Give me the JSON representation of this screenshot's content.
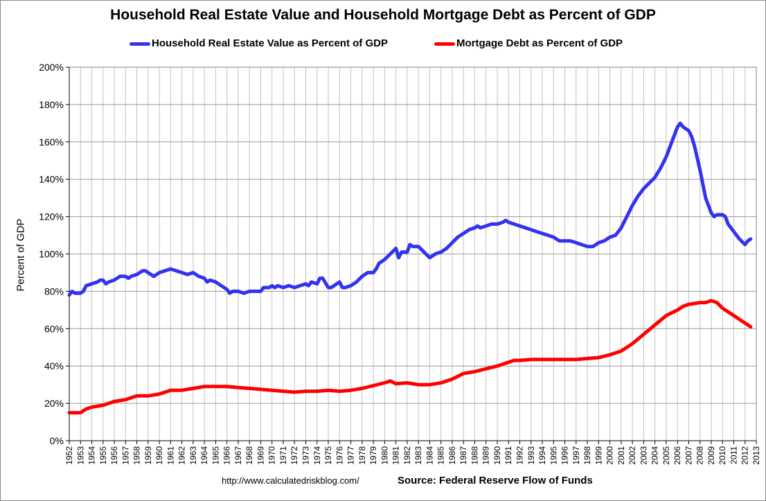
{
  "chart_data": {
    "type": "line",
    "title": "Household Real Estate Value and Household Mortgage Debt as Percent of GDP",
    "xlabel": "",
    "ylabel": "Percent of GDP",
    "ylim": [
      0,
      200
    ],
    "xlim": [
      1952,
      2013
    ],
    "y_ticks": [
      "0%",
      "20%",
      "40%",
      "60%",
      "80%",
      "100%",
      "120%",
      "140%",
      "160%",
      "180%",
      "200%"
    ],
    "x_ticks": [
      "1952",
      "1953",
      "1954",
      "1955",
      "1956",
      "1957",
      "1958",
      "1959",
      "1960",
      "1961",
      "1962",
      "1963",
      "1964",
      "1965",
      "1966",
      "1967",
      "1968",
      "1969",
      "1970",
      "1971",
      "1972",
      "1973",
      "1974",
      "1975",
      "1976",
      "1977",
      "1978",
      "1979",
      "1980",
      "1981",
      "1982",
      "1983",
      "1984",
      "1985",
      "1986",
      "1987",
      "1988",
      "1989",
      "1990",
      "1991",
      "1992",
      "1993",
      "1994",
      "1995",
      "1996",
      "1997",
      "1998",
      "1999",
      "2000",
      "2001",
      "2002",
      "2003",
      "2004",
      "2005",
      "2006",
      "2007",
      "2008",
      "2009",
      "2010",
      "2011",
      "2012",
      "2013"
    ],
    "grid": true,
    "legend_position": "top",
    "series": [
      {
        "name": "Household Real Estate Value as Percent of GDP",
        "color": "#3333ee",
        "points": [
          [
            1952.0,
            78
          ],
          [
            1952.25,
            80
          ],
          [
            1952.5,
            79
          ],
          [
            1953.0,
            79
          ],
          [
            1953.25,
            80
          ],
          [
            1953.5,
            83
          ],
          [
            1954.0,
            84
          ],
          [
            1954.5,
            85
          ],
          [
            1954.75,
            86
          ],
          [
            1955.0,
            86
          ],
          [
            1955.25,
            84
          ],
          [
            1955.5,
            85
          ],
          [
            1956.0,
            86
          ],
          [
            1956.5,
            88
          ],
          [
            1957.0,
            88
          ],
          [
            1957.25,
            87
          ],
          [
            1957.5,
            88
          ],
          [
            1958.0,
            89
          ],
          [
            1958.5,
            91
          ],
          [
            1958.75,
            91
          ],
          [
            1959.0,
            90
          ],
          [
            1959.25,
            89
          ],
          [
            1959.5,
            88
          ],
          [
            1960.0,
            90
          ],
          [
            1960.5,
            91
          ],
          [
            1961.0,
            92
          ],
          [
            1961.5,
            91
          ],
          [
            1962.0,
            90
          ],
          [
            1962.5,
            89
          ],
          [
            1963.0,
            90
          ],
          [
            1963.5,
            88
          ],
          [
            1964.0,
            87
          ],
          [
            1964.25,
            85
          ],
          [
            1964.5,
            86
          ],
          [
            1965.0,
            85
          ],
          [
            1965.5,
            83
          ],
          [
            1966.0,
            81
          ],
          [
            1966.25,
            79
          ],
          [
            1966.5,
            80
          ],
          [
            1967.0,
            80
          ],
          [
            1967.5,
            79
          ],
          [
            1968.0,
            80
          ],
          [
            1968.5,
            80
          ],
          [
            1969.0,
            80
          ],
          [
            1969.25,
            82
          ],
          [
            1969.75,
            82
          ],
          [
            1970.0,
            83
          ],
          [
            1970.25,
            82
          ],
          [
            1970.5,
            83
          ],
          [
            1971.0,
            82
          ],
          [
            1971.5,
            83
          ],
          [
            1972.0,
            82
          ],
          [
            1972.5,
            83
          ],
          [
            1973.0,
            84
          ],
          [
            1973.25,
            83
          ],
          [
            1973.5,
            85
          ],
          [
            1974.0,
            84
          ],
          [
            1974.25,
            87
          ],
          [
            1974.5,
            87
          ],
          [
            1975.0,
            82
          ],
          [
            1975.25,
            82
          ],
          [
            1975.5,
            83
          ],
          [
            1976.0,
            85
          ],
          [
            1976.25,
            82
          ],
          [
            1976.5,
            82
          ],
          [
            1977.0,
            83
          ],
          [
            1977.5,
            85
          ],
          [
            1978.0,
            88
          ],
          [
            1978.5,
            90
          ],
          [
            1979.0,
            90
          ],
          [
            1979.25,
            92
          ],
          [
            1979.5,
            95
          ],
          [
            1980.0,
            97
          ],
          [
            1980.5,
            100
          ],
          [
            1981.0,
            103
          ],
          [
            1981.25,
            98
          ],
          [
            1981.5,
            101
          ],
          [
            1982.0,
            101
          ],
          [
            1982.25,
            105
          ],
          [
            1982.5,
            104
          ],
          [
            1983.0,
            104
          ],
          [
            1983.5,
            101
          ],
          [
            1984.0,
            98
          ],
          [
            1984.5,
            100
          ],
          [
            1985.0,
            101
          ],
          [
            1985.5,
            103
          ],
          [
            1986.0,
            106
          ],
          [
            1986.5,
            109
          ],
          [
            1987.0,
            111
          ],
          [
            1987.5,
            113
          ],
          [
            1988.0,
            114
          ],
          [
            1988.25,
            115
          ],
          [
            1988.5,
            114
          ],
          [
            1989.0,
            115
          ],
          [
            1989.5,
            116
          ],
          [
            1990.0,
            116
          ],
          [
            1990.5,
            117
          ],
          [
            1990.75,
            118
          ],
          [
            1991.0,
            117
          ],
          [
            1991.5,
            116
          ],
          [
            1992.0,
            115
          ],
          [
            1992.5,
            114
          ],
          [
            1993.0,
            113
          ],
          [
            1993.5,
            112
          ],
          [
            1994.0,
            111
          ],
          [
            1994.5,
            110
          ],
          [
            1995.0,
            109
          ],
          [
            1995.5,
            107
          ],
          [
            1996.0,
            107
          ],
          [
            1996.5,
            107
          ],
          [
            1997.0,
            106
          ],
          [
            1997.5,
            105
          ],
          [
            1998.0,
            104
          ],
          [
            1998.5,
            104
          ],
          [
            1999.0,
            106
          ],
          [
            1999.5,
            107
          ],
          [
            2000.0,
            109
          ],
          [
            2000.5,
            110
          ],
          [
            2001.0,
            114
          ],
          [
            2001.5,
            120
          ],
          [
            2002.0,
            126
          ],
          [
            2002.5,
            131
          ],
          [
            2003.0,
            135
          ],
          [
            2003.5,
            138
          ],
          [
            2004.0,
            141
          ],
          [
            2004.5,
            146
          ],
          [
            2005.0,
            152
          ],
          [
            2005.5,
            160
          ],
          [
            2006.0,
            168
          ],
          [
            2006.25,
            170
          ],
          [
            2006.5,
            168
          ],
          [
            2007.0,
            166
          ],
          [
            2007.25,
            163
          ],
          [
            2007.5,
            158
          ],
          [
            2008.0,
            145
          ],
          [
            2008.5,
            130
          ],
          [
            2009.0,
            122
          ],
          [
            2009.25,
            120
          ],
          [
            2009.5,
            121
          ],
          [
            2010.0,
            121
          ],
          [
            2010.25,
            120
          ],
          [
            2010.5,
            116
          ],
          [
            2011.0,
            112
          ],
          [
            2011.5,
            108
          ],
          [
            2012.0,
            105
          ],
          [
            2012.25,
            107
          ],
          [
            2012.5,
            108
          ]
        ]
      },
      {
        "name": "Mortgage Debt as Percent of GDP",
        "color": "#ff0000",
        "points": [
          [
            1952.0,
            15
          ],
          [
            1953.0,
            15
          ],
          [
            1953.5,
            17
          ],
          [
            1954.0,
            18
          ],
          [
            1955.0,
            19
          ],
          [
            1956.0,
            21
          ],
          [
            1957.0,
            22
          ],
          [
            1958.0,
            24
          ],
          [
            1959.0,
            24
          ],
          [
            1960.0,
            25
          ],
          [
            1961.0,
            27
          ],
          [
            1962.0,
            27
          ],
          [
            1963.0,
            28
          ],
          [
            1964.0,
            29
          ],
          [
            1965.0,
            29
          ],
          [
            1966.0,
            29
          ],
          [
            1967.0,
            28.5
          ],
          [
            1968.0,
            28
          ],
          [
            1969.0,
            27.5
          ],
          [
            1970.0,
            27
          ],
          [
            1971.0,
            26.5
          ],
          [
            1972.0,
            26
          ],
          [
            1973.0,
            26.5
          ],
          [
            1974.0,
            26.5
          ],
          [
            1975.0,
            27
          ],
          [
            1976.0,
            26.5
          ],
          [
            1977.0,
            27
          ],
          [
            1978.0,
            28
          ],
          [
            1979.0,
            29.5
          ],
          [
            1980.0,
            31
          ],
          [
            1980.5,
            32
          ],
          [
            1981.0,
            30.5
          ],
          [
            1982.0,
            31
          ],
          [
            1983.0,
            30
          ],
          [
            1984.0,
            30
          ],
          [
            1985.0,
            31
          ],
          [
            1986.0,
            33
          ],
          [
            1987.0,
            36
          ],
          [
            1988.0,
            37
          ],
          [
            1989.0,
            38.5
          ],
          [
            1990.0,
            40
          ],
          [
            1991.0,
            42
          ],
          [
            1991.5,
            43
          ],
          [
            1992.0,
            43
          ],
          [
            1993.0,
            43.5
          ],
          [
            1994.0,
            43.5
          ],
          [
            1995.0,
            43.5
          ],
          [
            1996.0,
            43.5
          ],
          [
            1997.0,
            43.5
          ],
          [
            1998.0,
            44
          ],
          [
            1999.0,
            44.5
          ],
          [
            2000.0,
            46
          ],
          [
            2001.0,
            48
          ],
          [
            2002.0,
            52
          ],
          [
            2003.0,
            57
          ],
          [
            2004.0,
            62
          ],
          [
            2005.0,
            67
          ],
          [
            2006.0,
            70
          ],
          [
            2006.5,
            72
          ],
          [
            2007.0,
            73
          ],
          [
            2008.0,
            74
          ],
          [
            2008.5,
            74
          ],
          [
            2009.0,
            75
          ],
          [
            2009.5,
            74
          ],
          [
            2010.0,
            71
          ],
          [
            2011.0,
            67
          ],
          [
            2011.5,
            65
          ],
          [
            2012.0,
            63
          ],
          [
            2012.5,
            61
          ]
        ]
      }
    ]
  },
  "footer": {
    "url": "http://www.calculatedriskblog.com/",
    "source": "Source: Federal Reserve Flow of Funds"
  }
}
